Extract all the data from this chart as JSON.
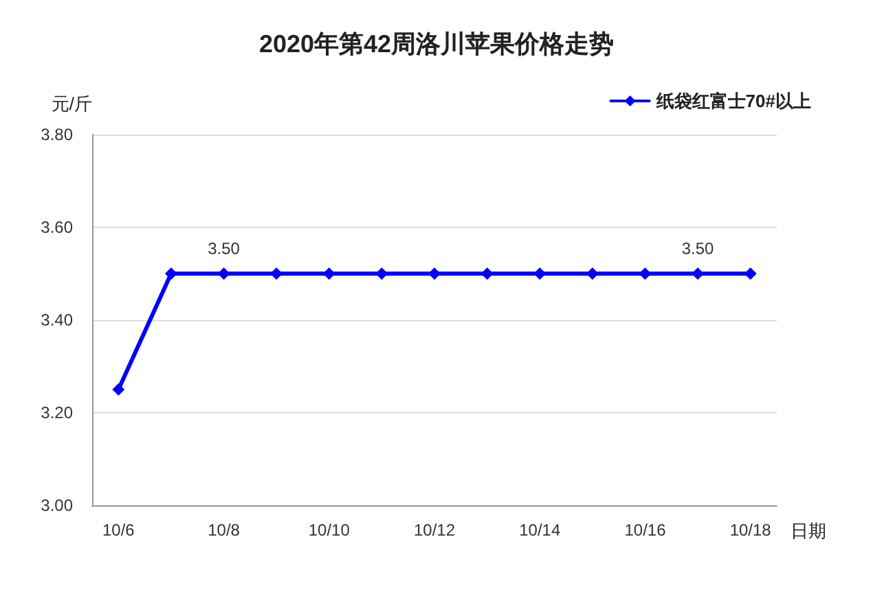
{
  "chart_data": {
    "type": "line",
    "title": "2020年第42周洛川苹果价格走势",
    "ylabel": "元/斤",
    "xlabel": "日期",
    "categories": [
      "10/6",
      null,
      "10/8",
      null,
      "10/10",
      null,
      "10/12",
      null,
      "10/14",
      null,
      "10/16",
      null,
      "10/18"
    ],
    "series": [
      {
        "name": "纸袋红富士70#以上",
        "color": "#0000ff",
        "values": [
          3.25,
          3.5,
          3.5,
          3.5,
          3.5,
          3.5,
          3.5,
          3.5,
          3.5,
          3.5,
          3.5,
          3.5,
          3.5
        ],
        "value_labels": [
          null,
          null,
          "3.50",
          null,
          null,
          null,
          null,
          null,
          null,
          null,
          null,
          "3.50",
          null
        ]
      }
    ],
    "ylim": [
      3.0,
      3.8
    ],
    "yticks": [
      {
        "value": 3.0,
        "label": "3.00"
      },
      {
        "value": 3.2,
        "label": "3.20"
      },
      {
        "value": 3.4,
        "label": "3.40"
      },
      {
        "value": 3.6,
        "label": "3.60"
      },
      {
        "value": 3.8,
        "label": "3.80"
      }
    ],
    "grid": "y",
    "legend": "top right",
    "marker": "diamond",
    "line_style": "solid"
  }
}
